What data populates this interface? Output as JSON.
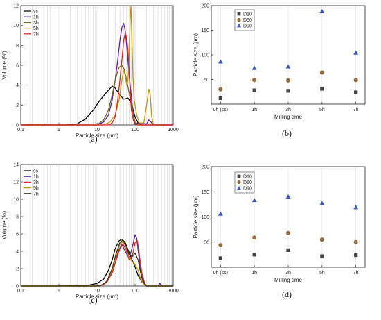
{
  "chart_data": [
    {
      "panel": "(a)",
      "type": "line",
      "xlabel": "Particle size (μm)",
      "ylabel": "Volume (%)",
      "xscale": "log",
      "xlim": [
        0.1,
        1000
      ],
      "ylim": [
        0,
        12
      ],
      "xticks": [
        "0.1",
        "1",
        "10",
        "100",
        "1000"
      ],
      "yticks": [
        "0",
        "2",
        "4",
        "6",
        "8",
        "10",
        "12"
      ],
      "grid": "vertical",
      "legend": "top-left",
      "series": [
        {
          "name": "ss",
          "color": "#000000",
          "points": [
            [
              0.1,
              0
            ],
            [
              1.5,
              0
            ],
            [
              3,
              0.1
            ],
            [
              5,
              0.6
            ],
            [
              8,
              1.5
            ],
            [
              12,
              2.5
            ],
            [
              18,
              3.3
            ],
            [
              25,
              3.9
            ],
            [
              30,
              3.7
            ],
            [
              40,
              3.0
            ],
            [
              50,
              2.6
            ],
            [
              65,
              2.7
            ],
            [
              80,
              2.2
            ],
            [
              100,
              0.8
            ],
            [
              120,
              0.2
            ],
            [
              150,
              0
            ],
            [
              1000,
              0
            ]
          ]
        },
        {
          "name": "1h",
          "color": "#5b1fa8",
          "points": [
            [
              0.1,
              0
            ],
            [
              10,
              0
            ],
            [
              15,
              0.3
            ],
            [
              20,
              1.0
            ],
            [
              25,
              2.5
            ],
            [
              30,
              4.5
            ],
            [
              35,
              6.5
            ],
            [
              40,
              8.5
            ],
            [
              45,
              9.8
            ],
            [
              50,
              10.2
            ],
            [
              55,
              9.5
            ],
            [
              60,
              8.0
            ],
            [
              70,
              5.0
            ],
            [
              80,
              2.8
            ],
            [
              90,
              1.0
            ],
            [
              100,
              0.2
            ],
            [
              200,
              0.1
            ],
            [
              230,
              0.5
            ],
            [
              260,
              0.3
            ],
            [
              300,
              0
            ],
            [
              1000,
              0
            ]
          ]
        },
        {
          "name": "3h",
          "color": "#6b6b1a",
          "points": [
            [
              0.1,
              0
            ],
            [
              0.3,
              0.08
            ],
            [
              0.5,
              0.02
            ],
            [
              1,
              0
            ],
            [
              10,
              0
            ],
            [
              15,
              0.5
            ],
            [
              20,
              1.5
            ],
            [
              25,
              3.0
            ],
            [
              30,
              4.5
            ],
            [
              38,
              5.8
            ],
            [
              45,
              6.0
            ],
            [
              52,
              5.6
            ],
            [
              60,
              4.5
            ],
            [
              70,
              3.2
            ],
            [
              80,
              2.2
            ],
            [
              90,
              1.0
            ],
            [
              100,
              0.3
            ],
            [
              120,
              0
            ],
            [
              1000,
              0
            ]
          ]
        },
        {
          "name": "5h",
          "color": "#c8920a",
          "points": [
            [
              0.1,
              0
            ],
            [
              15,
              0
            ],
            [
              22,
              0.3
            ],
            [
              30,
              1.0
            ],
            [
              38,
              2.5
            ],
            [
              45,
              4.5
            ],
            [
              50,
              5.5
            ],
            [
              55,
              5.0
            ],
            [
              60,
              4.0
            ],
            [
              65,
              4.5
            ],
            [
              70,
              7.0
            ],
            [
              75,
              11.0
            ],
            [
              78,
              12.0
            ],
            [
              82,
              9.0
            ],
            [
              88,
              5.0
            ],
            [
              95,
              2.5
            ],
            [
              110,
              1.0
            ],
            [
              130,
              0.2
            ],
            [
              170,
              0.2
            ],
            [
              200,
              2.0
            ],
            [
              230,
              3.6
            ],
            [
              250,
              3.0
            ],
            [
              270,
              1.0
            ],
            [
              300,
              0
            ],
            [
              1000,
              0
            ]
          ]
        },
        {
          "name": "7h",
          "color": "#e02020",
          "points": [
            [
              0.1,
              0
            ],
            [
              20,
              0
            ],
            [
              25,
              0.2
            ],
            [
              30,
              0.8
            ],
            [
              35,
              2.5
            ],
            [
              40,
              4.5
            ],
            [
              45,
              6.5
            ],
            [
              50,
              8.5
            ],
            [
              55,
              9.2
            ],
            [
              60,
              8.8
            ],
            [
              65,
              7.5
            ],
            [
              70,
              5.5
            ],
            [
              75,
              3.0
            ],
            [
              80,
              1.5
            ],
            [
              90,
              0.5
            ],
            [
              100,
              0.1
            ],
            [
              120,
              0
            ],
            [
              1000,
              0
            ]
          ]
        }
      ]
    },
    {
      "panel": "(b)",
      "type": "scatter",
      "xlabel": "Milling time",
      "ylabel": "Particle size (μm)",
      "categories": [
        "0h (ss)",
        "1h",
        "3h",
        "5h",
        "7h"
      ],
      "ylim": [
        0,
        200
      ],
      "yticks": [
        "50",
        "100",
        "150",
        "200"
      ],
      "grid": "vertical",
      "legend": "top-left",
      "series": [
        {
          "name": "D10",
          "marker": "square",
          "color": "#444444",
          "values": [
            12,
            28,
            27,
            31,
            24
          ]
        },
        {
          "name": "D50",
          "marker": "circle",
          "color": "#9a6a3a",
          "values": [
            30,
            49,
            48,
            64,
            49
          ]
        },
        {
          "name": "D90",
          "marker": "triangle",
          "color": "#3a56c8",
          "values": [
            86,
            73,
            76,
            188,
            104
          ]
        }
      ]
    },
    {
      "panel": "(c)",
      "type": "line",
      "xlabel": "Particle size (μm)",
      "ylabel": "Volume (%)",
      "xscale": "log",
      "xlim": [
        0.1,
        1000
      ],
      "ylim": [
        0,
        14
      ],
      "xticks": [
        "0.1",
        "1",
        "10",
        "100",
        "1000"
      ],
      "yticks": [
        "0",
        "2",
        "4",
        "6",
        "8",
        "10",
        "12",
        "14"
      ],
      "grid": "vertical",
      "legend": "top-left",
      "series": [
        {
          "name": "ss",
          "color": "#000000",
          "points": [
            [
              0.1,
              0
            ],
            [
              1,
              0
            ],
            [
              3,
              0.05
            ],
            [
              6,
              0.1
            ],
            [
              10,
              0.3
            ],
            [
              15,
              0.8
            ],
            [
              20,
              1.8
            ],
            [
              25,
              3.0
            ],
            [
              30,
              4.3
            ],
            [
              38,
              5.2
            ],
            [
              45,
              5.4
            ],
            [
              55,
              5.0
            ],
            [
              65,
              4.2
            ],
            [
              80,
              3.2
            ],
            [
              100,
              2.2
            ],
            [
              120,
              1.2
            ],
            [
              150,
              0.5
            ],
            [
              200,
              0
            ],
            [
              1000,
              0
            ]
          ]
        },
        {
          "name": "1h",
          "color": "#5b1fa8",
          "points": [
            [
              0.1,
              0
            ],
            [
              10,
              0
            ],
            [
              15,
              0.2
            ],
            [
              20,
              0.8
            ],
            [
              25,
              1.8
            ],
            [
              30,
              3.0
            ],
            [
              38,
              4.2
            ],
            [
              45,
              4.8
            ],
            [
              55,
              4.0
            ],
            [
              70,
              3.2
            ],
            [
              85,
              4.5
            ],
            [
              100,
              5.9
            ],
            [
              110,
              5.5
            ],
            [
              125,
              3.5
            ],
            [
              140,
              1.5
            ],
            [
              160,
              0.5
            ],
            [
              200,
              0
            ],
            [
              400,
              0
            ],
            [
              450,
              0.3
            ],
            [
              500,
              0
            ],
            [
              1000,
              0
            ]
          ]
        },
        {
          "name": "3h",
          "color": "#e02020",
          "points": [
            [
              0.1,
              0
            ],
            [
              12,
              0
            ],
            [
              18,
              0.4
            ],
            [
              25,
              1.5
            ],
            [
              32,
              3.0
            ],
            [
              40,
              4.3
            ],
            [
              48,
              4.8
            ],
            [
              58,
              4.2
            ],
            [
              70,
              3.0
            ],
            [
              85,
              3.5
            ],
            [
              100,
              5.0
            ],
            [
              115,
              5.2
            ],
            [
              130,
              3.5
            ],
            [
              150,
              1.5
            ],
            [
              180,
              0.3
            ],
            [
              200,
              0
            ],
            [
              1000,
              0
            ]
          ]
        },
        {
          "name": "5h",
          "color": "#c8920a",
          "points": [
            [
              0.1,
              0
            ],
            [
              12,
              0
            ],
            [
              18,
              0.5
            ],
            [
              25,
              1.8
            ],
            [
              32,
              3.5
            ],
            [
              40,
              4.8
            ],
            [
              48,
              5.1
            ],
            [
              58,
              4.5
            ],
            [
              70,
              3.2
            ],
            [
              85,
              2.8
            ],
            [
              100,
              2.5
            ],
            [
              120,
              1.8
            ],
            [
              140,
              0.8
            ],
            [
              170,
              0.2
            ],
            [
              200,
              0
            ],
            [
              1000,
              0
            ]
          ]
        },
        {
          "name": "7h",
          "color": "#3a3a0a",
          "points": [
            [
              0.1,
              0
            ],
            [
              12,
              0
            ],
            [
              18,
              0.5
            ],
            [
              25,
              2.0
            ],
            [
              32,
              3.8
            ],
            [
              40,
              5.0
            ],
            [
              48,
              5.3
            ],
            [
              58,
              4.6
            ],
            [
              70,
              3.6
            ],
            [
              85,
              3.4
            ],
            [
              100,
              3.8
            ],
            [
              120,
              3.0
            ],
            [
              140,
              1.5
            ],
            [
              170,
              0.4
            ],
            [
              200,
              0
            ],
            [
              1000,
              0
            ]
          ]
        }
      ]
    },
    {
      "panel": "(d)",
      "type": "scatter",
      "xlabel": "Milling time",
      "ylabel": "Particle size (μm)",
      "categories": [
        "0h (ss)",
        "1h",
        "3h",
        "5h",
        "7h"
      ],
      "ylim": [
        0,
        200
      ],
      "yticks": [
        "50",
        "100",
        "150",
        "200"
      ],
      "grid": "vertical",
      "legend": "top-left",
      "series": [
        {
          "name": "D10",
          "marker": "square",
          "color": "#444444",
          "values": [
            18,
            25,
            34,
            22,
            24
          ]
        },
        {
          "name": "D50",
          "marker": "circle",
          "color": "#9a6a3a",
          "values": [
            44,
            59,
            68,
            55,
            50
          ]
        },
        {
          "name": "D90",
          "marker": "triangle",
          "color": "#3a56c8",
          "values": [
            106,
            133,
            140,
            127,
            119
          ]
        }
      ]
    }
  ]
}
